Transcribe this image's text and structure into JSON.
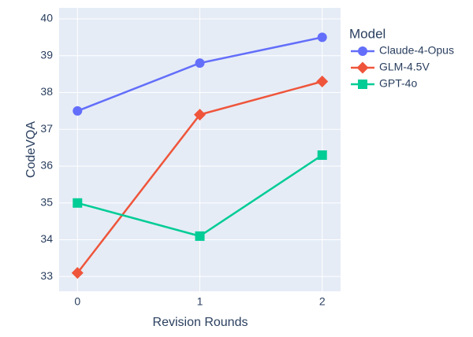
{
  "chart_data": {
    "type": "line",
    "x_label": "Revision Rounds",
    "y_label": "CodeVQA",
    "legend_title": "Model",
    "x": [
      0,
      1,
      2
    ],
    "series": [
      {
        "name": "Claude-4-Opus",
        "color": "#636efa",
        "marker": "circle",
        "values": [
          37.5,
          38.8,
          39.5
        ]
      },
      {
        "name": "GLM-4.5V",
        "color": "#ef553b",
        "marker": "diamond",
        "values": [
          33.1,
          37.4,
          38.3
        ]
      },
      {
        "name": "GPT-4o",
        "color": "#00cc96",
        "marker": "square",
        "values": [
          35.0,
          34.1,
          36.3
        ]
      }
    ],
    "xlim": [
      -0.15,
      2.15
    ],
    "xticks": [
      0,
      1,
      2
    ],
    "ylim": [
      32.6,
      40.3
    ],
    "yticks": [
      33,
      34,
      35,
      36,
      37,
      38,
      39,
      40
    ],
    "grid": true,
    "background": "#e5ecf6",
    "legend": "right"
  }
}
